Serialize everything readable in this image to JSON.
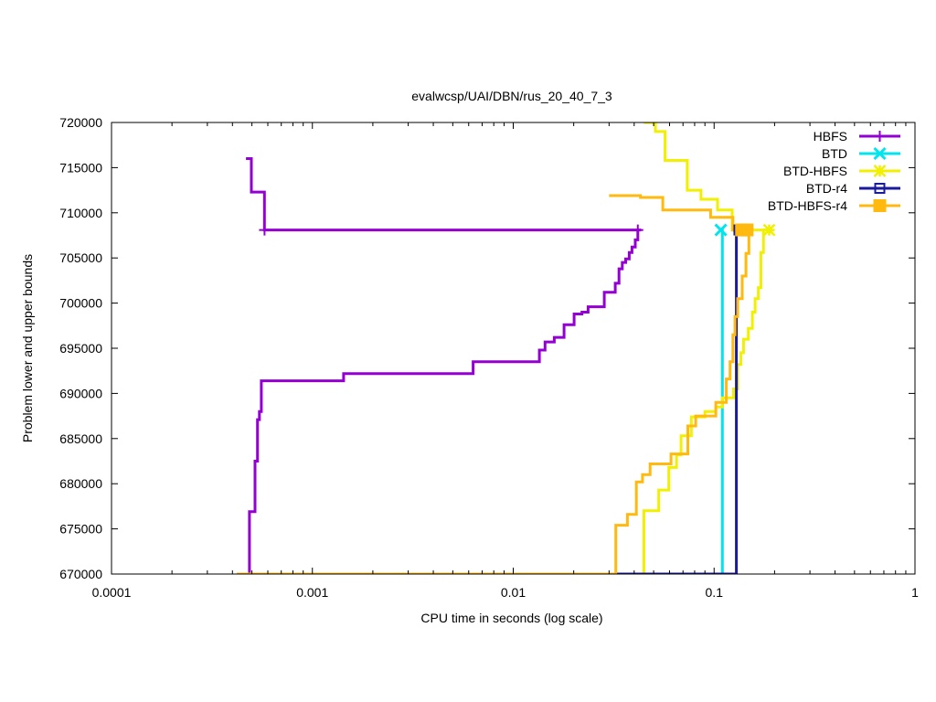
{
  "chart_data": {
    "type": "line",
    "title": "evalwcsp/UAI/DBN/rus_20_40_7_3",
    "xlabel": "CPU time in seconds (log scale)",
    "ylabel": "Problem lower and upper bounds",
    "xscale": "log",
    "xlim": [
      0.0001,
      1
    ],
    "ylim": [
      670000,
      720000
    ],
    "xticks": [
      {
        "value": 0.0001,
        "label": "0.0001"
      },
      {
        "value": 0.001,
        "label": "0.001"
      },
      {
        "value": 0.01,
        "label": "0.01"
      },
      {
        "value": 0.1,
        "label": "0.1"
      },
      {
        "value": 1,
        "label": "1"
      }
    ],
    "yticks": [
      {
        "value": 670000,
        "label": "670000"
      },
      {
        "value": 675000,
        "label": "675000"
      },
      {
        "value": 680000,
        "label": "680000"
      },
      {
        "value": 685000,
        "label": "685000"
      },
      {
        "value": 690000,
        "label": "690000"
      },
      {
        "value": 695000,
        "label": "695000"
      },
      {
        "value": 700000,
        "label": "700000"
      },
      {
        "value": 705000,
        "label": "705000"
      },
      {
        "value": 710000,
        "label": "710000"
      },
      {
        "value": 715000,
        "label": "715000"
      },
      {
        "value": 720000,
        "label": "720000"
      }
    ],
    "legend_position": "top-right",
    "grid": false,
    "series": [
      {
        "name": "HBFS",
        "color": "#9400d3",
        "marker": "plus",
        "marker_points": [
          [
            0.000578,
            708100
          ],
          [
            0.0417,
            708100
          ]
        ],
        "lines": [
          [
            [
              0.000467,
              716000
            ],
            [
              0.000497,
              716000
            ],
            [
              0.000497,
              712300
            ],
            [
              0.000577,
              712300
            ],
            [
              0.000577,
              708100
            ],
            [
              0.0433,
              708100
            ]
          ],
          [
            [
              0.000486,
              670000
            ],
            [
              0.000486,
              676900
            ],
            [
              0.000518,
              676900
            ],
            [
              0.000518,
              682500
            ],
            [
              0.000533,
              682500
            ],
            [
              0.000533,
              687100
            ],
            [
              0.000545,
              687100
            ],
            [
              0.000545,
              688000
            ],
            [
              0.000557,
              688000
            ],
            [
              0.000557,
              691400
            ],
            [
              0.00143,
              691400
            ],
            [
              0.00143,
              692200
            ],
            [
              0.00631,
              692200
            ],
            [
              0.00631,
              693500
            ],
            [
              0.0135,
              693500
            ],
            [
              0.0135,
              694800
            ],
            [
              0.0144,
              694800
            ],
            [
              0.0144,
              695700
            ],
            [
              0.016,
              695700
            ],
            [
              0.016,
              696200
            ],
            [
              0.0179,
              696200
            ],
            [
              0.0179,
              697600
            ],
            [
              0.0201,
              697600
            ],
            [
              0.0201,
              698800
            ],
            [
              0.022,
              698800
            ],
            [
              0.022,
              699000
            ],
            [
              0.0236,
              699000
            ],
            [
              0.0236,
              699600
            ],
            [
              0.0284,
              699600
            ],
            [
              0.0284,
              701200
            ],
            [
              0.0322,
              701200
            ],
            [
              0.0322,
              702200
            ],
            [
              0.0336,
              702200
            ],
            [
              0.0336,
              703800
            ],
            [
              0.0349,
              703800
            ],
            [
              0.0349,
              704500
            ],
            [
              0.0363,
              704500
            ],
            [
              0.0363,
              704900
            ],
            [
              0.0378,
              704900
            ],
            [
              0.0378,
              705600
            ],
            [
              0.039,
              705600
            ],
            [
              0.039,
              706200
            ],
            [
              0.0405,
              706200
            ],
            [
              0.0405,
              707000
            ],
            [
              0.0417,
              707000
            ],
            [
              0.0417,
              708100
            ]
          ]
        ]
      },
      {
        "name": "BTD",
        "color": "#00e5ee",
        "marker": "cross",
        "marker_points": [
          [
            0.108,
            708100
          ]
        ],
        "lines": [
          [
            [
              0.11,
              670000
            ],
            [
              0.11,
              708100
            ],
            [
              0.108,
              708100
            ]
          ]
        ]
      },
      {
        "name": "BTD-HBFS",
        "color": "#f0f000",
        "marker": "star",
        "marker_points": [
          [
            0.188,
            708100
          ]
        ],
        "lines": [
          [
            [
              0.0447,
              720000
            ],
            [
              0.051,
              720000
            ],
            [
              0.051,
              719000
            ],
            [
              0.057,
              719000
            ],
            [
              0.057,
              715800
            ],
            [
              0.0735,
              715800
            ],
            [
              0.0735,
              712500
            ],
            [
              0.086,
              712500
            ],
            [
              0.086,
              711500
            ],
            [
              0.104,
              711500
            ],
            [
              0.104,
              710300
            ],
            [
              0.123,
              710300
            ],
            [
              0.123,
              708100
            ],
            [
              0.188,
              708100
            ]
          ],
          [
            [
              0.0447,
              670000
            ],
            [
              0.0447,
              677000
            ],
            [
              0.053,
              677000
            ],
            [
              0.053,
              679300
            ],
            [
              0.0595,
              679300
            ],
            [
              0.0595,
              681800
            ],
            [
              0.065,
              681800
            ],
            [
              0.065,
              683200
            ],
            [
              0.0685,
              683200
            ],
            [
              0.0685,
              685300
            ],
            [
              0.077,
              685300
            ],
            [
              0.077,
              687400
            ],
            [
              0.09,
              687400
            ],
            [
              0.09,
              688000
            ],
            [
              0.102,
              688000
            ],
            [
              0.102,
              688500
            ],
            [
              0.11,
              688500
            ],
            [
              0.11,
              689500
            ],
            [
              0.125,
              689500
            ],
            [
              0.125,
              690500
            ],
            [
              0.131,
              690500
            ],
            [
              0.131,
              693200
            ],
            [
              0.136,
              693200
            ],
            [
              0.136,
              694500
            ],
            [
              0.14,
              694500
            ],
            [
              0.14,
              696000
            ],
            [
              0.148,
              696000
            ],
            [
              0.148,
              697200
            ],
            [
              0.155,
              697200
            ],
            [
              0.155,
              699000
            ],
            [
              0.16,
              699000
            ],
            [
              0.16,
              700500
            ],
            [
              0.166,
              700500
            ],
            [
              0.166,
              701700
            ],
            [
              0.171,
              701700
            ],
            [
              0.171,
              705600
            ],
            [
              0.176,
              705600
            ],
            [
              0.176,
              708100
            ]
          ]
        ]
      },
      {
        "name": "BTD-r4",
        "color": "#1a1a9c",
        "marker": "square-open",
        "marker_points": [
          [
            0.133,
            708100
          ]
        ],
        "lines": [
          [
            [
              0.03,
              670000
            ],
            [
              0.129,
              670000
            ],
            [
              0.129,
              708100
            ],
            [
              0.124,
              708100
            ],
            [
              0.124,
              708100
            ],
            [
              0.14,
              708100
            ]
          ]
        ]
      },
      {
        "name": "BTD-HBFS-r4",
        "color": "#ffb90f",
        "marker": "square-filled",
        "marker_points": [
          [
            0.137,
            708100
          ],
          [
            0.146,
            708100
          ]
        ],
        "lines": [
          [
            [
              0.03,
              711900
            ],
            [
              0.043,
              711900
            ],
            [
              0.043,
              711700
            ],
            [
              0.0555,
              711700
            ],
            [
              0.0555,
              710300
            ],
            [
              0.096,
              710300
            ],
            [
              0.096,
              709500
            ],
            [
              0.124,
              709500
            ],
            [
              0.124,
              708100
            ],
            [
              0.15,
              708100
            ]
          ],
          [
            [
              0.00042,
              670000
            ],
            [
              0.0324,
              670000
            ],
            [
              0.0324,
              675400
            ],
            [
              0.037,
              675400
            ],
            [
              0.037,
              676600
            ],
            [
              0.041,
              676600
            ],
            [
              0.041,
              680200
            ],
            [
              0.044,
              680200
            ],
            [
              0.044,
              681000
            ],
            [
              0.048,
              681000
            ],
            [
              0.048,
              682200
            ],
            [
              0.061,
              682200
            ],
            [
              0.061,
              683300
            ],
            [
              0.074,
              683300
            ],
            [
              0.074,
              686400
            ],
            [
              0.081,
              686400
            ],
            [
              0.081,
              687500
            ],
            [
              0.102,
              687500
            ],
            [
              0.102,
              689000
            ],
            [
              0.115,
              689000
            ],
            [
              0.115,
              691600
            ],
            [
              0.12,
              691600
            ],
            [
              0.12,
              693500
            ],
            [
              0.124,
              693500
            ],
            [
              0.124,
              696500
            ],
            [
              0.127,
              696500
            ],
            [
              0.127,
              698500
            ],
            [
              0.131,
              698500
            ],
            [
              0.131,
              700500
            ],
            [
              0.138,
              700500
            ],
            [
              0.138,
              703000
            ],
            [
              0.144,
              703000
            ],
            [
              0.144,
              705500
            ],
            [
              0.149,
              705500
            ],
            [
              0.149,
              708100
            ]
          ]
        ]
      }
    ]
  }
}
